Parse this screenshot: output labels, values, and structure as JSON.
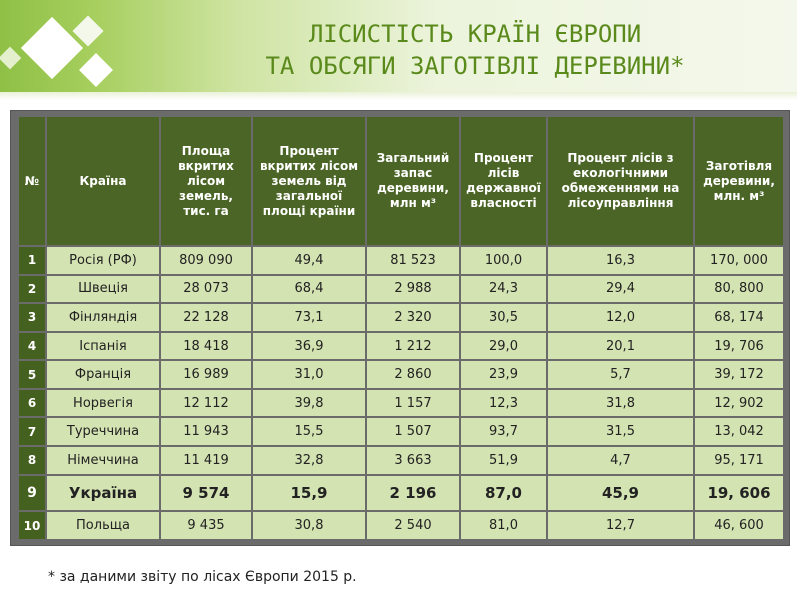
{
  "title": {
    "line1": "ЛІСИСТІСТЬ КРАЇН ЄВРОПИ",
    "line2": "ТА ОБСЯГИ ЗАГОТІВЛІ ДЕРЕВИНИ*"
  },
  "colors": {
    "title": "#5b8a1c",
    "header_bg": "#4a6526",
    "cell_bg": "#d4e3b2",
    "frame": "#6b6b6b"
  },
  "table": {
    "headers": [
      "№",
      "Країна",
      "Площа вкритих лісом земель, тис. га",
      "Процент вкритих лісом земель від загальної площі країни",
      "Загальний запас деревини, млн м³",
      "Процент лісів державної власності",
      "Процент лісів з екологічними обмеженнями на лісоуправління",
      "Заготівля деревини, млн. м³"
    ],
    "rows": [
      [
        "1",
        "Росія (РФ)",
        "809 090",
        "49,4",
        "81 523",
        "100,0",
        "16,3",
        "170, 000"
      ],
      [
        "2",
        "Швеція",
        "28 073",
        "68,4",
        "2 988",
        "24,3",
        "29,4",
        "80, 800"
      ],
      [
        "3",
        "Фінляндія",
        "22 128",
        "73,1",
        "2 320",
        "30,5",
        "12,0",
        "68, 174"
      ],
      [
        "4",
        "Іспанія",
        "18 418",
        "36,9",
        "1 212",
        "29,0",
        "20,1",
        "19, 706"
      ],
      [
        "5",
        "Франція",
        "16 989",
        "31,0",
        "2 860",
        "23,9",
        "5,7",
        "39, 172"
      ],
      [
        "6",
        "Норвегія",
        "12 112",
        "39,8",
        "1 157",
        "12,3",
        "31,8",
        "12, 902"
      ],
      [
        "7",
        "Туреччина",
        "11 943",
        "15,5",
        "1 507",
        "93,7",
        "31,5",
        "13, 042"
      ],
      [
        "8",
        "Німеччина",
        "11 419",
        "32,8",
        "3 663",
        "51,9",
        "4,7",
        "95, 171"
      ],
      [
        "9",
        "Україна",
        "9 574",
        "15,9",
        "2 196",
        "87,0",
        "45,9",
        "19, 606"
      ],
      [
        "10",
        "Польща",
        "9 435",
        "30,8",
        "2 540",
        "81,0",
        "12,7",
        "46, 600"
      ]
    ]
  },
  "footnote": "* за даними звіту по лісах Європи 2015 р."
}
